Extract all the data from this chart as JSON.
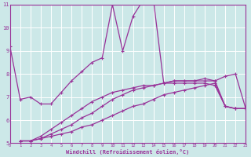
{
  "xlabel": "Windchill (Refroidissement éolien,°C)",
  "background_color": "#cce8e8",
  "grid_color": "#aacccc",
  "line_color": "#993399",
  "x_min": 0,
  "x_max": 23,
  "y_min": 5,
  "y_max": 11,
  "line1_x": [
    0,
    1,
    2,
    3,
    4,
    5,
    6,
    7,
    8,
    9,
    10,
    11,
    12,
    13,
    14,
    15,
    16,
    17,
    18,
    19,
    20,
    21,
    22,
    23
  ],
  "line1_y": [
    9.2,
    6.9,
    7.0,
    6.7,
    6.7,
    7.2,
    7.7,
    8.1,
    8.5,
    8.7,
    11.0,
    9.0,
    10.5,
    11.2,
    11.2,
    7.6,
    7.7,
    7.7,
    7.7,
    7.7,
    7.7,
    7.9,
    8.0,
    6.5
  ],
  "line2_x": [
    1,
    2,
    3,
    4,
    5,
    6,
    7,
    8,
    9,
    10,
    11,
    12,
    13,
    14,
    15,
    16,
    17,
    18,
    19,
    20,
    21,
    22,
    23
  ],
  "line2_y": [
    5.1,
    5.1,
    5.2,
    5.3,
    5.4,
    5.5,
    5.7,
    5.8,
    6.0,
    6.2,
    6.4,
    6.6,
    6.7,
    6.9,
    7.1,
    7.2,
    7.3,
    7.4,
    7.5,
    7.6,
    6.6,
    6.5,
    6.5
  ],
  "line3_x": [
    1,
    2,
    3,
    4,
    5,
    6,
    7,
    8,
    9,
    10,
    11,
    12,
    13,
    14,
    15,
    16,
    17,
    18,
    19,
    20,
    21,
    22,
    23
  ],
  "line3_y": [
    5.1,
    5.1,
    5.2,
    5.4,
    5.6,
    5.8,
    6.1,
    6.3,
    6.6,
    6.9,
    7.1,
    7.3,
    7.4,
    7.5,
    7.6,
    7.7,
    7.7,
    7.7,
    7.8,
    7.7,
    6.6,
    6.5,
    6.5
  ],
  "line4_x": [
    1,
    2,
    3,
    4,
    5,
    6,
    7,
    8,
    9,
    10,
    11,
    12,
    13,
    14,
    15,
    16,
    17,
    18,
    19,
    20,
    21,
    22,
    23
  ],
  "line4_y": [
    5.1,
    5.1,
    5.3,
    5.6,
    5.9,
    6.2,
    6.5,
    6.8,
    7.0,
    7.2,
    7.3,
    7.4,
    7.5,
    7.5,
    7.6,
    7.6,
    7.6,
    7.6,
    7.6,
    7.5,
    6.6,
    6.5,
    6.5
  ]
}
